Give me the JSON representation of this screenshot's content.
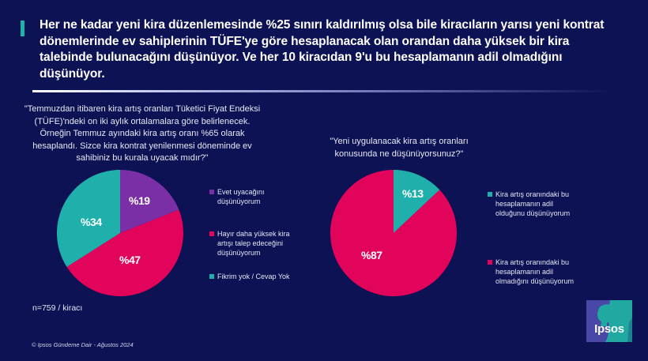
{
  "header": {
    "headline": "Her ne kadar yeni kira düzenlemesinde %25 sınırı kaldırılmış olsa bile kiracıların yarısı yeni kontrat dönemlerinde ev sahiplerinin TÜFE'ye göre hesaplanacak olan orandan daha yüksek bir kira talebinde bulunacağını düşünüyor. Ve her 10 kiracıdan 9'u bu hesaplamanın adil olmadığını düşünüyor.",
    "accent_color": "#1fb3a8"
  },
  "left_chart": {
    "question": "\"Temmuzdan itibaren kira artış oranları Tüketici Fiyat Endeksi (TÜFE)'ndeki on iki aylık ortalamalara göre belirlenecek. Örneğin Temmuz ayındaki kira artış oranı %65 olarak hesaplandı. Sizce kira kontrat yenilenmesi döneminde ev sahibiniz bu kurala uyacak mıdır?\"",
    "slices": [
      {
        "label": "%19",
        "legend": "Evet uyacağını düşünüyorum",
        "color": "#7a2fa6"
      },
      {
        "label": "%47",
        "legend": "Hayır daha yüksek kira artışı talep edeceğini düşünüyorum",
        "color": "#e2035a"
      },
      {
        "label": "%34",
        "legend": "Fikrim yok / Cevap Yok",
        "color": "#1fb0ab"
      }
    ]
  },
  "right_chart": {
    "question": "\"Yeni uygulanacak kira artış oranları konusunda ne düşünüyorsunuz?\"",
    "slices": [
      {
        "label": "%13",
        "legend": "Kira artış oranındaki bu hesaplamanın adil olduğunu düşünüyorum",
        "color": "#1fb0ab"
      },
      {
        "label": "%87",
        "legend": "Kira artış oranındaki bu hesaplamanın adil olmadığını düşünüyorum",
        "color": "#e2035a"
      }
    ]
  },
  "sample_note": "n=759 / kiracı",
  "footer": "© Ipsos Gündeme Dair - Ağustos 2024",
  "logo": {
    "text": "Ipsos"
  },
  "chart_data": [
    {
      "type": "pie",
      "title": "\"Temmuzdan itibaren kira artış oranları Tüketici Fiyat Endeksi (TÜFE)'ndeki on iki aylık ortalamalara göre belirlenecek. Örneğin Temmuz ayındaki kira artış oranı %65 olarak hesaplandı. Sizce kira kontrat yenilenmesi döneminde ev sahibiniz bu kurala uyacak mıdır?\"",
      "categories": [
        "Evet uyacağını düşünüyorum",
        "Hayır daha yüksek kira artışı talep edeceğini düşünüyorum",
        "Fikrim yok / Cevap Yok"
      ],
      "values": [
        19,
        47,
        34
      ],
      "colors": [
        "#7a2fa6",
        "#e2035a",
        "#1fb0ab"
      ],
      "unit": "%",
      "legend_position": "right",
      "note": "n=759 / kiracı"
    },
    {
      "type": "pie",
      "title": "\"Yeni uygulanacak kira artış oranları konusunda ne düşünüyorsunuz?\"",
      "categories": [
        "Kira artış oranındaki bu hesaplamanın adil olduğunu düşünüyorum",
        "Kira artış oranındaki bu hesaplamanın adil olmadığını düşünüyorum"
      ],
      "values": [
        13,
        87
      ],
      "colors": [
        "#1fb0ab",
        "#e2035a"
      ],
      "unit": "%",
      "legend_position": "right"
    }
  ]
}
